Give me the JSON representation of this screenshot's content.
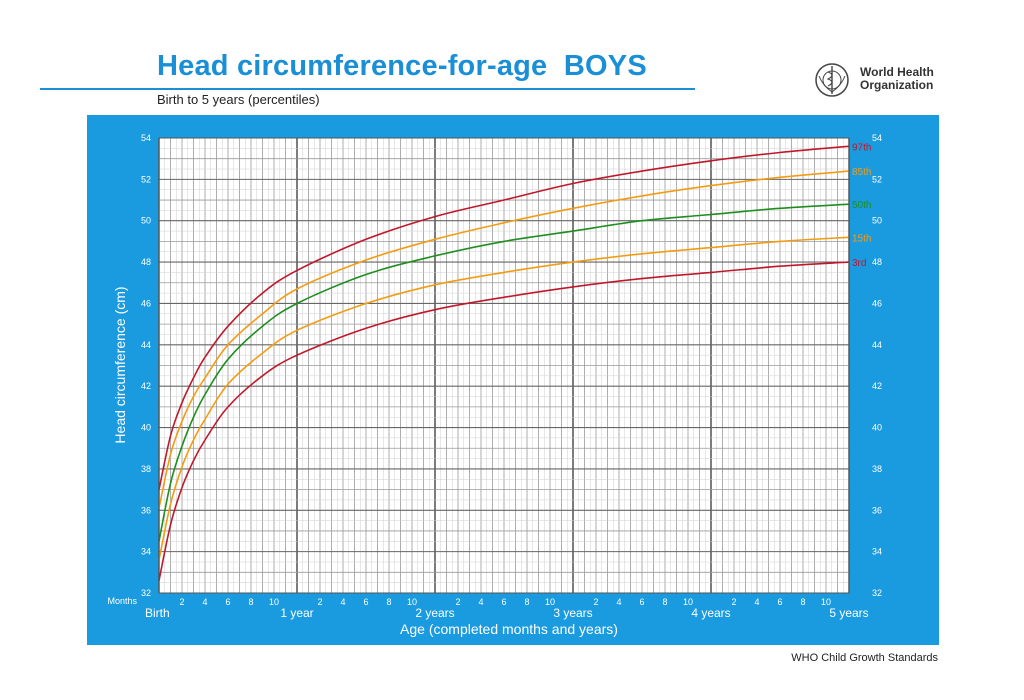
{
  "header": {
    "title": "Head circumference-for-age  BOYS",
    "subtitle": "Birth to 5 years (percentiles)",
    "org_line1": "World Health",
    "org_line2": "Organization",
    "footer": "WHO Child Growth Standards"
  },
  "colors": {
    "title_blue": "#1a8fd6",
    "panel_blue": "#1a9be0",
    "p97": "#c0182a",
    "p85": "#f39c12",
    "p50": "#1e8e1e",
    "p15": "#f39c12",
    "p3": "#c0182a"
  },
  "chart_data": {
    "type": "line",
    "ylabel": "Head circumference (cm)",
    "xlabel": "Age (completed months and years)",
    "xlim": [
      0,
      60
    ],
    "ylim": [
      32,
      54
    ],
    "y_ticks": [
      32,
      34,
      36,
      38,
      40,
      42,
      44,
      46,
      48,
      50,
      52,
      54
    ],
    "x_unit_label": "Months",
    "x_month_ticks": [
      {
        "month": 2,
        "label": "2"
      },
      {
        "month": 4,
        "label": "4"
      },
      {
        "month": 6,
        "label": "6"
      },
      {
        "month": 8,
        "label": "8"
      },
      {
        "month": 10,
        "label": "10"
      },
      {
        "month": 14,
        "label": "2"
      },
      {
        "month": 16,
        "label": "4"
      },
      {
        "month": 18,
        "label": "6"
      },
      {
        "month": 20,
        "label": "8"
      },
      {
        "month": 22,
        "label": "10"
      },
      {
        "month": 26,
        "label": "2"
      },
      {
        "month": 28,
        "label": "4"
      },
      {
        "month": 30,
        "label": "6"
      },
      {
        "month": 32,
        "label": "8"
      },
      {
        "month": 34,
        "label": "10"
      },
      {
        "month": 38,
        "label": "2"
      },
      {
        "month": 40,
        "label": "4"
      },
      {
        "month": 42,
        "label": "6"
      },
      {
        "month": 44,
        "label": "8"
      },
      {
        "month": 46,
        "label": "10"
      },
      {
        "month": 50,
        "label": "2"
      },
      {
        "month": 52,
        "label": "4"
      },
      {
        "month": 54,
        "label": "6"
      },
      {
        "month": 56,
        "label": "8"
      },
      {
        "month": 58,
        "label": "10"
      }
    ],
    "x_year_ticks": [
      {
        "month": 0,
        "label": "Birth"
      },
      {
        "month": 12,
        "label": "1 year"
      },
      {
        "month": 24,
        "label": "2 years"
      },
      {
        "month": 36,
        "label": "3 years"
      },
      {
        "month": 48,
        "label": "4 years"
      },
      {
        "month": 60,
        "label": "5 years"
      }
    ],
    "x": [
      0,
      1,
      2,
      3,
      4,
      6,
      9,
      12,
      18,
      24,
      30,
      36,
      42,
      48,
      54,
      60
    ],
    "series": [
      {
        "name": "97th",
        "color_key": "p97",
        "values": [
          37.0,
          39.6,
          41.2,
          42.4,
          43.4,
          44.9,
          46.5,
          47.6,
          49.1,
          50.2,
          51.0,
          51.8,
          52.4,
          52.9,
          53.3,
          53.6
        ]
      },
      {
        "name": "85th",
        "color_key": "p85",
        "values": [
          36.1,
          38.7,
          40.3,
          41.5,
          42.4,
          44.0,
          45.5,
          46.7,
          48.1,
          49.1,
          49.9,
          50.6,
          51.2,
          51.7,
          52.1,
          52.4
        ]
      },
      {
        "name": "50th",
        "color_key": "p50",
        "values": [
          34.5,
          37.3,
          39.1,
          40.5,
          41.6,
          43.3,
          44.9,
          46.0,
          47.4,
          48.3,
          49.0,
          49.5,
          50.0,
          50.3,
          50.6,
          50.8
        ]
      },
      {
        "name": "15th",
        "color_key": "p15",
        "values": [
          33.6,
          36.3,
          38.1,
          39.4,
          40.4,
          42.1,
          43.6,
          44.7,
          46.0,
          46.9,
          47.5,
          48.0,
          48.4,
          48.7,
          49.0,
          49.2
        ]
      },
      {
        "name": "3rd",
        "color_key": "p3",
        "values": [
          32.6,
          35.3,
          37.1,
          38.4,
          39.4,
          41.0,
          42.5,
          43.5,
          44.8,
          45.7,
          46.3,
          46.8,
          47.2,
          47.5,
          47.8,
          48.0
        ]
      }
    ]
  }
}
